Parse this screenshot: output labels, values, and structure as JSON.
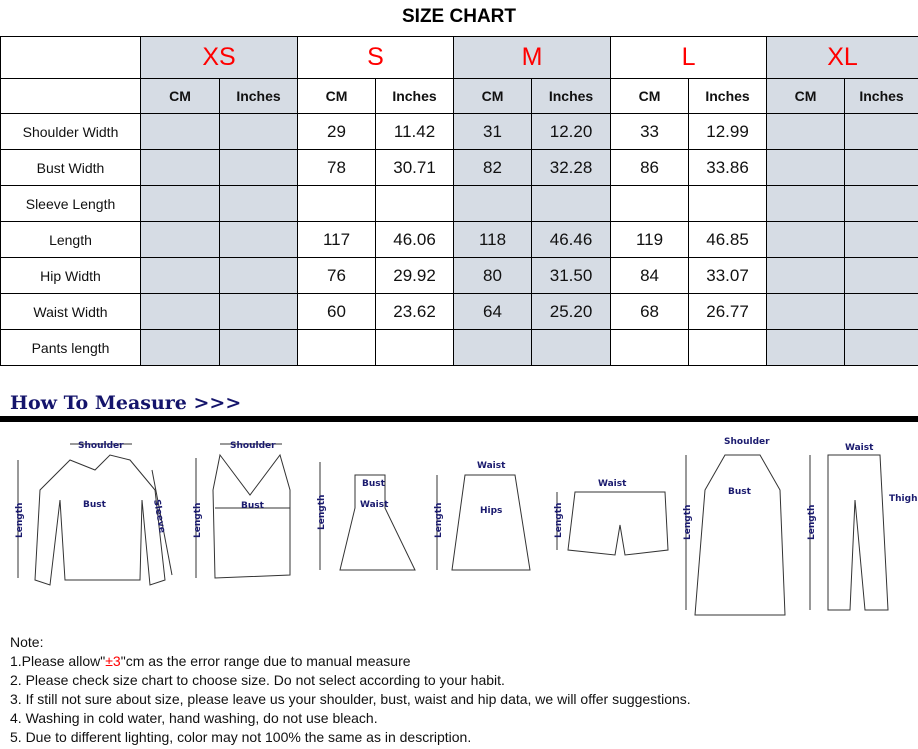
{
  "title": "SIZE CHART",
  "sizes": [
    "XS",
    "S",
    "M",
    "L",
    "XL"
  ],
  "units": [
    "CM",
    "Inches"
  ],
  "rows": [
    {
      "label": "Shoulder Width",
      "values": [
        "",
        "",
        "29",
        "11.42",
        "31",
        "12.20",
        "33",
        "12.99",
        "",
        ""
      ]
    },
    {
      "label": "Bust Width",
      "values": [
        "",
        "",
        "78",
        "30.71",
        "82",
        "32.28",
        "86",
        "33.86",
        "",
        ""
      ]
    },
    {
      "label": "Sleeve Length",
      "values": [
        "",
        "",
        "",
        "",
        "",
        "",
        "",
        "",
        "",
        ""
      ]
    },
    {
      "label": "Length",
      "values": [
        "",
        "",
        "117",
        "46.06",
        "118",
        "46.46",
        "119",
        "46.85",
        "",
        ""
      ]
    },
    {
      "label": "Hip Width",
      "values": [
        "",
        "",
        "76",
        "29.92",
        "80",
        "31.50",
        "84",
        "33.07",
        "",
        ""
      ]
    },
    {
      "label": "Waist Width",
      "values": [
        "",
        "",
        "60",
        "23.62",
        "64",
        "25.20",
        "68",
        "26.77",
        "",
        ""
      ]
    },
    {
      "label": "Pants length",
      "values": [
        "",
        "",
        "",
        "",
        "",
        "",
        "",
        "",
        "",
        ""
      ]
    }
  ],
  "how_to_measure": "How To Measure >>>",
  "labels": {
    "shoulder": "Shoulder",
    "bust": "Bust",
    "sleeve": "Sleeve",
    "length": "Length",
    "waist": "Waist",
    "hips": "Hips",
    "thigh": "Thigh"
  },
  "notes": {
    "heading": "Note:",
    "n1_pre": "1.Please allow\"",
    "n1_red": "±3",
    "n1_post": "\"cm as the error range due to manual measure",
    "n2": "2. Please check size chart to choose size. Do not select according to your habit.",
    "n3": "3. If still not sure about size, please leave us your shoulder, bust, waist and hip data, we will offer suggestions.",
    "n4": "4. Washing in cold water, hand washing, do not use bleach.",
    "n5": "5. Due to different lighting, color may not 100% the same as in description."
  },
  "colors": {
    "size_label": "#ff0000",
    "shaded_column": "#d6dce4",
    "measure_label": "#1a1a6e"
  }
}
